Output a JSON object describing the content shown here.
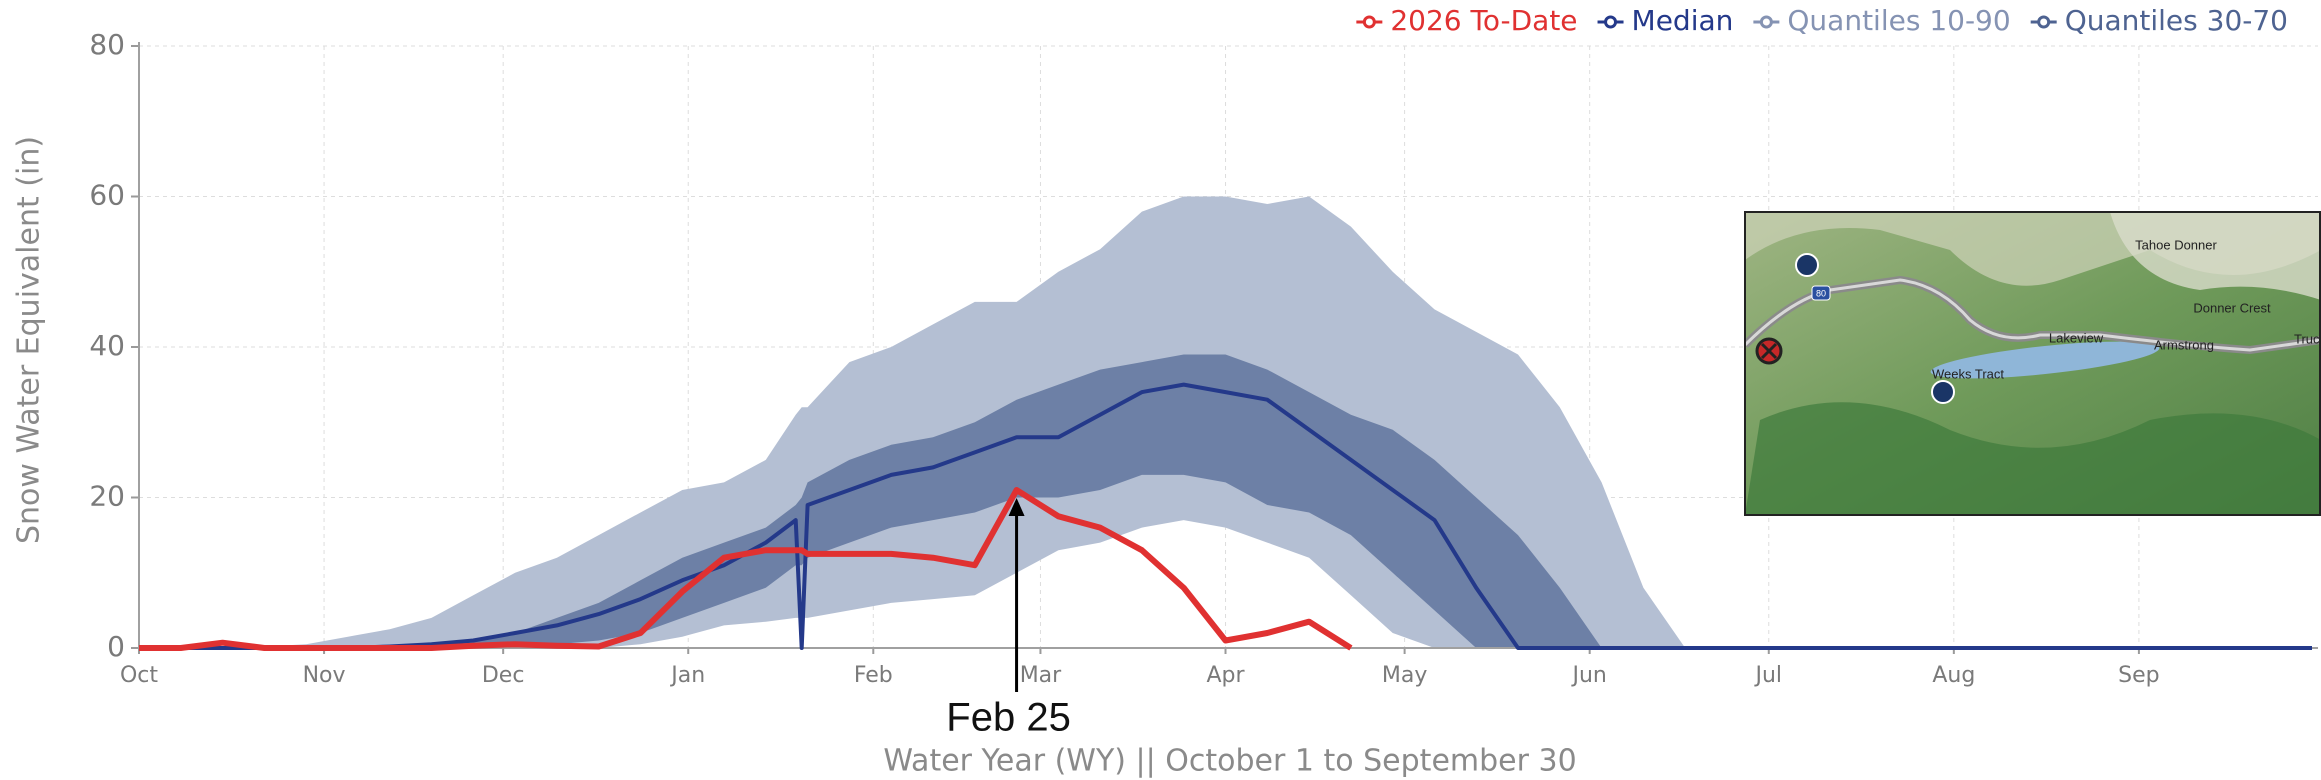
{
  "chart_data": {
    "type": "line",
    "x_label": "Water Year (WY) || October 1 to September 30",
    "y_label": "Snow Water Equivalent (in)",
    "xlim": [
      0,
      365
    ],
    "ylim": [
      0,
      80
    ],
    "yticks": [
      0,
      20,
      40,
      60,
      80
    ],
    "xticks": [
      {
        "value": 0,
        "label": "Oct"
      },
      {
        "value": 31,
        "label": "Nov"
      },
      {
        "value": 61,
        "label": "Dec"
      },
      {
        "value": 92,
        "label": "Jan"
      },
      {
        "value": 123,
        "label": "Feb"
      },
      {
        "value": 151,
        "label": "Mar"
      },
      {
        "value": 182,
        "label": "Apr"
      },
      {
        "value": 212,
        "label": "May"
      },
      {
        "value": 243,
        "label": "Jun"
      },
      {
        "value": 273,
        "label": "Jul"
      },
      {
        "value": 304,
        "label": "Aug"
      },
      {
        "value": 335,
        "label": "Sep"
      }
    ],
    "grid": true,
    "legend": "top-right",
    "x": [
      0,
      7,
      14,
      21,
      28,
      35,
      42,
      49,
      56,
      63,
      70,
      77,
      84,
      91,
      98,
      105,
      110,
      111,
      112,
      119,
      126,
      133,
      140,
      147,
      154,
      161,
      168,
      175,
      182,
      189,
      196,
      203,
      210,
      217,
      224,
      231,
      238,
      245,
      252,
      259,
      266,
      273,
      280,
      287,
      294,
      301,
      308,
      315,
      322,
      329,
      336,
      343,
      350,
      357,
      364
    ],
    "series": [
      {
        "name": "2026 To-Date",
        "color": "#e03131",
        "values": [
          0,
          0,
          0.7,
          0,
          0,
          0,
          0,
          0,
          0.3,
          0.5,
          0.3,
          0.2,
          2,
          7.5,
          12,
          13,
          13,
          13,
          12.5,
          12.5,
          12.5,
          12,
          11,
          21,
          17.5,
          16,
          13,
          8,
          1,
          2,
          3.5,
          0,
          null,
          null,
          null,
          null,
          null,
          null,
          null,
          null,
          null,
          null,
          null,
          null,
          null,
          null,
          null,
          null,
          null,
          null,
          null,
          null,
          null,
          null,
          null
        ]
      },
      {
        "name": "Median",
        "color": "#24398a",
        "values": [
          0,
          0,
          0,
          0,
          0,
          0,
          0.2,
          0.5,
          1,
          2,
          3,
          4.5,
          6.5,
          9,
          11,
          14,
          17,
          0,
          19,
          21,
          23,
          24,
          26,
          28,
          28,
          31,
          34,
          35,
          34,
          33,
          29,
          25,
          21,
          17,
          8,
          0,
          0,
          0,
          0,
          0,
          0,
          0,
          0,
          0,
          0,
          0,
          0,
          0,
          0,
          0,
          0,
          0,
          0,
          0,
          0
        ]
      },
      {
        "name": "Quantiles 10-90",
        "color": "#8593b3",
        "fill": "#b4bfd3",
        "high": [
          0,
          0,
          0,
          0.2,
          0.5,
          1.5,
          2.5,
          4,
          7,
          10,
          12,
          15,
          18,
          21,
          22,
          25,
          31,
          32,
          32,
          38,
          40,
          43,
          46,
          46,
          50,
          53,
          58,
          60,
          60,
          59,
          60,
          56,
          50,
          45,
          42,
          39,
          32,
          22,
          8,
          0,
          0,
          0,
          0,
          0,
          0,
          0,
          0,
          0,
          0,
          0,
          0,
          0,
          0,
          0,
          0
        ],
        "low": [
          0,
          0,
          0,
          0,
          0,
          0,
          0,
          0,
          0,
          0,
          0,
          0,
          0.5,
          1.5,
          3,
          3.5,
          4,
          4,
          4,
          5,
          6,
          6.5,
          7,
          10,
          13,
          14,
          16,
          17,
          16,
          14,
          12,
          7,
          2,
          0,
          0,
          0,
          0,
          0,
          0,
          0,
          0,
          0,
          0,
          0,
          0,
          0,
          0,
          0,
          0,
          0,
          0,
          0,
          0,
          0,
          0
        ]
      },
      {
        "name": "Quantiles 30-70",
        "color": "#4e6391",
        "fill": "#6d80a6",
        "high": [
          0,
          0,
          0,
          0,
          0,
          0,
          0,
          0,
          1,
          2,
          4,
          6,
          9,
          12,
          14,
          16,
          19,
          20,
          22,
          25,
          27,
          28,
          30,
          33,
          35,
          37,
          38,
          39,
          39,
          37,
          34,
          31,
          29,
          25,
          20,
          15,
          8,
          0,
          0,
          0,
          0,
          0,
          0,
          0,
          0,
          0,
          0,
          0,
          0,
          0,
          0,
          0,
          0,
          0,
          0
        ],
        "low": [
          0,
          0,
          0,
          0,
          0,
          0,
          0,
          0,
          0,
          0,
          0.5,
          1,
          2,
          4,
          6,
          8,
          11,
          11,
          12,
          14,
          16,
          17,
          18,
          20,
          20,
          21,
          23,
          23,
          22,
          19,
          18,
          15,
          10,
          5,
          0,
          0,
          0,
          0,
          0,
          0,
          0,
          0,
          0,
          0,
          0,
          0,
          0,
          0,
          0,
          0,
          0,
          0,
          0,
          0,
          0
        ]
      }
    ],
    "annotation": {
      "text": "Feb 25",
      "x": 147
    }
  },
  "map": {
    "labels": [
      "Tahoe Donner",
      "Donner Crest",
      "Lakeview",
      "Armstrong",
      "Weeks Tract",
      "Truc",
      "80"
    ]
  }
}
